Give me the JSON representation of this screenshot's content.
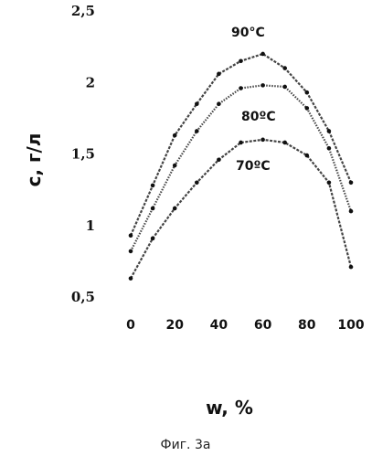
{
  "chart_data": {
    "type": "line",
    "xlabel": "w, %",
    "ylabel": "c, г/л",
    "x": [
      0,
      10,
      20,
      30,
      40,
      50,
      60,
      70,
      80,
      90,
      100
    ],
    "xticks": [
      "0",
      "20",
      "40",
      "60",
      "80",
      "100"
    ],
    "yticks": [
      "2,5",
      "2",
      "1,5",
      "1",
      "0,5"
    ],
    "xlim": [
      0,
      100
    ],
    "ylim": [
      0.5,
      2.5
    ],
    "grid": false,
    "series": [
      {
        "name": "90°C",
        "values": [
          0.93,
          1.28,
          1.63,
          1.85,
          2.06,
          2.15,
          2.2,
          2.1,
          1.93,
          1.66,
          1.3
        ]
      },
      {
        "name": "80ºC",
        "values": [
          0.82,
          1.12,
          1.42,
          1.66,
          1.85,
          1.96,
          1.98,
          1.97,
          1.82,
          1.54,
          1.1
        ]
      },
      {
        "name": "70ºC",
        "values": [
          0.63,
          0.91,
          1.12,
          1.3,
          1.46,
          1.58,
          1.6,
          1.58,
          1.49,
          1.3,
          0.71
        ]
      }
    ]
  },
  "caption": "Фиг. 3а"
}
